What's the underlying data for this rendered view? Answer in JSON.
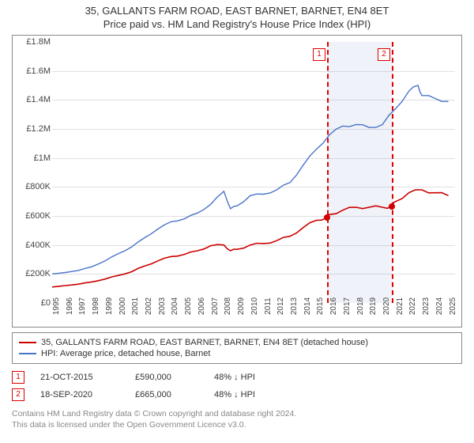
{
  "title": "35, GALLANTS FARM ROAD, EAST BARNET, BARNET, EN4 8ET",
  "subtitle": "Price paid vs. HM Land Registry's House Price Index (HPI)",
  "chart": {
    "type": "line",
    "background_color": "#ffffff",
    "grid_color": "#e0e0e0",
    "border_color": "#888888",
    "x": {
      "min": 1995,
      "max": 2025.5,
      "ticks": [
        1995,
        1996,
        1997,
        1998,
        1999,
        2000,
        2001,
        2002,
        2003,
        2004,
        2005,
        2006,
        2007,
        2008,
        2009,
        2010,
        2011,
        2012,
        2013,
        2014,
        2015,
        2016,
        2017,
        2018,
        2019,
        2020,
        2021,
        2022,
        2023,
        2024,
        2025
      ]
    },
    "y": {
      "min": 0,
      "max": 1800000,
      "ticks": [
        {
          "v": 0,
          "l": "£0"
        },
        {
          "v": 200000,
          "l": "£200K"
        },
        {
          "v": 400000,
          "l": "£400K"
        },
        {
          "v": 600000,
          "l": "£600K"
        },
        {
          "v": 800000,
          "l": "£800K"
        },
        {
          "v": 1000000,
          "l": "£1M"
        },
        {
          "v": 1200000,
          "l": "£1.2M"
        },
        {
          "v": 1400000,
          "l": "£1.4M"
        },
        {
          "v": 1600000,
          "l": "£1.6M"
        },
        {
          "v": 1800000,
          "l": "£1.8M"
        }
      ]
    },
    "band": {
      "start": 2015.81,
      "end": 2020.72,
      "fill": "rgba(120,150,200,0.12)",
      "edge_color": "#d00000"
    },
    "series": [
      {
        "name": "35, GALLANTS FARM ROAD, EAST BARNET, BARNET, EN4 8ET (detached house)",
        "color": "#cc0000",
        "width": 1.6,
        "xs": [
          1995,
          1996,
          1997,
          1998,
          1999,
          2000,
          2001,
          2002,
          2003,
          2004,
          2005,
          2006,
          2007,
          2008,
          2008.5,
          2009,
          2010,
          2011,
          2012,
          2013,
          2014,
          2015,
          2015.81,
          2016,
          2017,
          2018,
          2019,
          2020,
          2020.72,
          2021,
          2022,
          2023,
          2024,
          2025
        ],
        "ys": [
          110000,
          120000,
          130000,
          145000,
          165000,
          190000,
          215000,
          255000,
          290000,
          320000,
          335000,
          360000,
          395000,
          400000,
          360000,
          370000,
          400000,
          410000,
          430000,
          460000,
          520000,
          570000,
          590000,
          610000,
          640000,
          660000,
          660000,
          660000,
          665000,
          700000,
          760000,
          780000,
          760000,
          740000
        ]
      },
      {
        "name": "HPI: Average price, detached house, Barnet",
        "color": "#4a74c9",
        "width": 1.4,
        "xs": [
          1995,
          1996,
          1997,
          1998,
          1999,
          2000,
          2001,
          2002,
          2003,
          2004,
          2005,
          2006,
          2007,
          2008,
          2008.5,
          2009,
          2010,
          2011,
          2012,
          2013,
          2014,
          2015,
          2016,
          2017,
          2018,
          2019,
          2020,
          2021,
          2022,
          2022.7,
          2023,
          2024,
          2025
        ],
        "ys": [
          200000,
          210000,
          225000,
          250000,
          290000,
          340000,
          385000,
          450000,
          510000,
          560000,
          580000,
          620000,
          680000,
          770000,
          650000,
          670000,
          740000,
          750000,
          780000,
          830000,
          950000,
          1060000,
          1160000,
          1220000,
          1230000,
          1210000,
          1230000,
          1340000,
          1460000,
          1500000,
          1430000,
          1410000,
          1390000
        ]
      }
    ],
    "markers": [
      {
        "x": 2015.81,
        "y": 590000,
        "color": "#d00000",
        "label": "1"
      },
      {
        "x": 2020.72,
        "y": 665000,
        "color": "#d00000",
        "label": "2"
      }
    ],
    "plot_fontsize": 11
  },
  "legend": {
    "items": [
      {
        "color": "#cc0000",
        "label": "35, GALLANTS FARM ROAD, EAST BARNET, BARNET, EN4 8ET (detached house)"
      },
      {
        "color": "#4a74c9",
        "label": "HPI: Average price, detached house, Barnet"
      }
    ]
  },
  "sales": [
    {
      "n": "1",
      "date": "21-OCT-2015",
      "price": "£590,000",
      "delta": "48% ↓ HPI"
    },
    {
      "n": "2",
      "date": "18-SEP-2020",
      "price": "£665,000",
      "delta": "48% ↓ HPI"
    }
  ],
  "footer": {
    "line1": "Contains HM Land Registry data © Crown copyright and database right 2024.",
    "line2": "This data is licensed under the Open Government Licence v3.0."
  }
}
